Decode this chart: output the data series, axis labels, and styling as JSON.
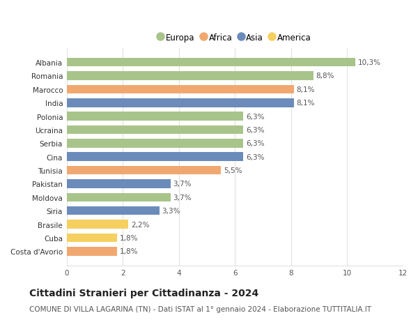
{
  "countries": [
    "Albania",
    "Romania",
    "Marocco",
    "India",
    "Polonia",
    "Ucraina",
    "Serbia",
    "Cina",
    "Tunisia",
    "Pakistan",
    "Moldova",
    "Siria",
    "Brasile",
    "Cuba",
    "Costa d'Avorio"
  ],
  "values": [
    10.3,
    8.8,
    8.1,
    8.1,
    6.3,
    6.3,
    6.3,
    6.3,
    5.5,
    3.7,
    3.7,
    3.3,
    2.2,
    1.8,
    1.8
  ],
  "labels": [
    "10,3%",
    "8,8%",
    "8,1%",
    "8,1%",
    "6,3%",
    "6,3%",
    "6,3%",
    "6,3%",
    "5,5%",
    "3,7%",
    "3,7%",
    "3,3%",
    "2,2%",
    "1,8%",
    "1,8%"
  ],
  "continents": [
    "Europa",
    "Europa",
    "Africa",
    "Asia",
    "Europa",
    "Europa",
    "Europa",
    "Asia",
    "Africa",
    "Asia",
    "Europa",
    "Asia",
    "America",
    "America",
    "Africa"
  ],
  "colors": {
    "Europa": "#a8c48a",
    "Africa": "#f0a870",
    "Asia": "#6b8cba",
    "America": "#f5d060"
  },
  "legend_order": [
    "Europa",
    "Africa",
    "Asia",
    "America"
  ],
  "xlim": [
    0,
    12
  ],
  "xticks": [
    0,
    2,
    4,
    6,
    8,
    10,
    12
  ],
  "title": "Cittadini Stranieri per Cittadinanza - 2024",
  "subtitle": "COMUNE DI VILLA LAGARINA (TN) - Dati ISTAT al 1° gennaio 2024 - Elaborazione TUTTITALIA.IT",
  "title_fontsize": 10,
  "subtitle_fontsize": 7.5,
  "label_fontsize": 7.5,
  "tick_fontsize": 7.5,
  "legend_fontsize": 8.5,
  "bar_height": 0.65,
  "background_color": "#ffffff",
  "grid_color": "#e0e0e0"
}
